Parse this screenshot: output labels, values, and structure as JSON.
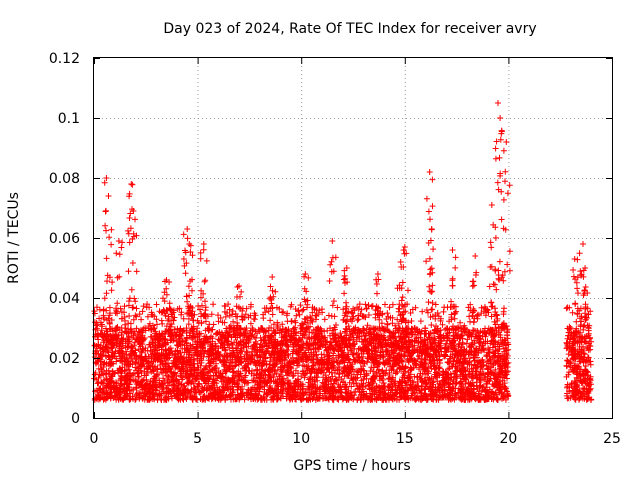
{
  "chart_data": {
    "type": "scatter",
    "title": "Day 023 of 2024, Rate Of TEC Index for receiver avry",
    "xlabel": "GPS time / hours",
    "ylabel": "ROTI / TECUs",
    "xlim": [
      0,
      25
    ],
    "ylim": [
      0,
      0.12
    ],
    "xticks": [
      0,
      5,
      10,
      15,
      20,
      25
    ],
    "xtick_labels": [
      "0",
      "5",
      "10",
      "15",
      "20",
      "25"
    ],
    "yticks": [
      0,
      0.02,
      0.04,
      0.06,
      0.08,
      0.1,
      0.12
    ],
    "ytick_labels": [
      "0",
      "0.02",
      "0.04",
      "0.06",
      "0.08",
      "0.1",
      "0.12"
    ],
    "grid": true,
    "marker": "+",
    "color": "#ff0000",
    "segments": [
      {
        "x_start": 0.0,
        "x_end": 20.0,
        "typical_min": 0.006,
        "typical_max": 0.03
      },
      {
        "x_start": 22.8,
        "x_end": 24.0,
        "typical_min": 0.006,
        "typical_max": 0.03
      }
    ],
    "peaks": [
      {
        "x": 0.6,
        "y": 0.08
      },
      {
        "x": 0.7,
        "y": 0.074
      },
      {
        "x": 1.2,
        "y": 0.059
      },
      {
        "x": 1.8,
        "y": 0.078
      },
      {
        "x": 1.9,
        "y": 0.069
      },
      {
        "x": 3.5,
        "y": 0.046
      },
      {
        "x": 4.5,
        "y": 0.063
      },
      {
        "x": 4.6,
        "y": 0.058
      },
      {
        "x": 5.3,
        "y": 0.058
      },
      {
        "x": 7.0,
        "y": 0.044
      },
      {
        "x": 8.6,
        "y": 0.047
      },
      {
        "x": 10.2,
        "y": 0.048
      },
      {
        "x": 11.5,
        "y": 0.059
      },
      {
        "x": 12.2,
        "y": 0.05
      },
      {
        "x": 13.7,
        "y": 0.048
      },
      {
        "x": 14.8,
        "y": 0.052
      },
      {
        "x": 15.0,
        "y": 0.057
      },
      {
        "x": 16.2,
        "y": 0.082
      },
      {
        "x": 16.3,
        "y": 0.063
      },
      {
        "x": 17.3,
        "y": 0.056
      },
      {
        "x": 18.4,
        "y": 0.054
      },
      {
        "x": 19.2,
        "y": 0.071
      },
      {
        "x": 19.5,
        "y": 0.105
      },
      {
        "x": 19.6,
        "y": 0.1
      },
      {
        "x": 19.9,
        "y": 0.092
      },
      {
        "x": 23.2,
        "y": 0.053
      },
      {
        "x": 23.6,
        "y": 0.058
      },
      {
        "x": 23.7,
        "y": 0.05
      }
    ]
  }
}
